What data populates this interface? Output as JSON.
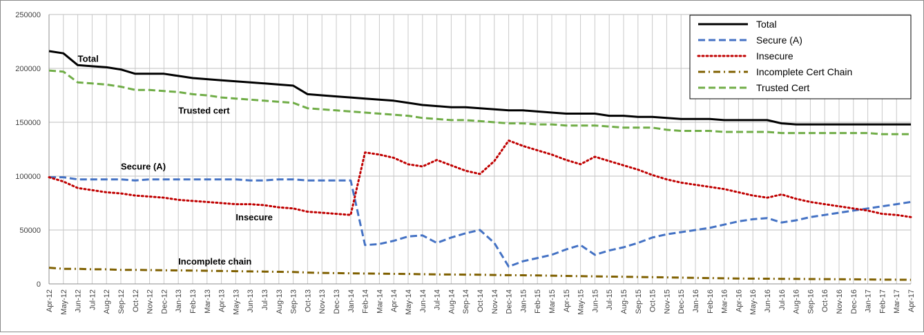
{
  "chart_data": {
    "type": "line",
    "title": "",
    "xlabel": "",
    "ylabel": "",
    "ylim": [
      0,
      250000
    ],
    "yticks": [
      0,
      50000,
      100000,
      150000,
      200000,
      250000
    ],
    "yticklabels": [
      "0",
      "50000",
      "100000",
      "150000",
      "200000",
      "250000"
    ],
    "grid": true,
    "legend_position": "top-right",
    "categories": [
      "Apr-12",
      "May-12",
      "Jun-12",
      "Jul-12",
      "Aug-12",
      "Sep-12",
      "Oct-12",
      "Nov-12",
      "Dec-12",
      "Jan-13",
      "Feb-13",
      "Mar-13",
      "Apr-13",
      "May-13",
      "Jun-13",
      "Jul-13",
      "Aug-13",
      "Sep-13",
      "Oct-13",
      "Nov-13",
      "Dec-13",
      "Jan-14",
      "Feb-14",
      "Mar-14",
      "Apr-14",
      "May-14",
      "Jun-14",
      "Jul-14",
      "Aug-14",
      "Sep-14",
      "Oct-14",
      "Nov-14",
      "Dec-14",
      "Jan-15",
      "Feb-15",
      "Mar-15",
      "Apr-15",
      "May-15",
      "Jun-15",
      "Jul-15",
      "Aug-15",
      "Sep-15",
      "Oct-15",
      "Nov-15",
      "Dec-15",
      "Jan-16",
      "Feb-16",
      "Mar-16",
      "Apr-16",
      "May-16",
      "Jun-16",
      "Jul-16",
      "Aug-16",
      "Sep-16",
      "Oct-16",
      "Nov-16",
      "Dec-16",
      "Jan-17",
      "Feb-17",
      "Mar-17",
      "Apr-17"
    ],
    "series": [
      {
        "name": "Total",
        "color": "#000000",
        "style": "solid",
        "values": [
          216000,
          214000,
          203000,
          202000,
          201000,
          199000,
          195000,
          195000,
          195000,
          193000,
          191000,
          190000,
          189000,
          188000,
          187000,
          186000,
          185000,
          184000,
          176000,
          175000,
          174000,
          173000,
          172000,
          171000,
          170000,
          168000,
          166000,
          165000,
          164000,
          164000,
          163000,
          162000,
          161000,
          161000,
          160000,
          159000,
          158000,
          158000,
          158000,
          156000,
          156000,
          155000,
          155000,
          154000,
          153000,
          153000,
          153000,
          152000,
          152000,
          152000,
          152000,
          149000,
          148000,
          148000,
          148000,
          148000,
          148000,
          148000,
          148000,
          148000,
          148000
        ]
      },
      {
        "name": "Secure (A)",
        "color": "#4472c4",
        "style": "dashed",
        "values": [
          99000,
          99000,
          97000,
          97000,
          97000,
          97000,
          96000,
          97000,
          97000,
          97000,
          97000,
          97000,
          97000,
          97000,
          96000,
          96000,
          97000,
          97000,
          96000,
          96000,
          96000,
          96000,
          36000,
          37000,
          40000,
          44000,
          45000,
          38000,
          43000,
          47000,
          50000,
          38000,
          16000,
          21000,
          24000,
          27000,
          32000,
          36000,
          27000,
          31000,
          34000,
          38000,
          43000,
          46000,
          48000,
          50000,
          52000,
          55000,
          58000,
          60000,
          61000,
          57000,
          59000,
          62000,
          64000,
          66000,
          68000,
          70000,
          72000,
          74000,
          76000
        ]
      },
      {
        "name": "Insecure",
        "color": "#c00000",
        "style": "dotted",
        "values": [
          99000,
          95000,
          89000,
          87000,
          85000,
          84000,
          82000,
          81000,
          80000,
          78000,
          77000,
          76000,
          75000,
          74000,
          74000,
          73000,
          71000,
          70000,
          67000,
          66000,
          65000,
          64000,
          122000,
          120000,
          117000,
          111000,
          109000,
          115000,
          110000,
          105000,
          102000,
          114000,
          133000,
          128000,
          124000,
          120000,
          115000,
          111000,
          118000,
          114000,
          110000,
          106000,
          101000,
          97000,
          94000,
          92000,
          90000,
          88000,
          85000,
          82000,
          80000,
          83000,
          79000,
          76000,
          74000,
          72000,
          70000,
          68000,
          65000,
          64000,
          62000
        ]
      },
      {
        "name": "Incomplete Cert Chain",
        "color": "#7f6000",
        "style": "dashdot",
        "values": [
          15000,
          14000,
          14000,
          13500,
          13500,
          13000,
          13000,
          12800,
          12600,
          12500,
          12400,
          12200,
          12000,
          11800,
          11600,
          11400,
          11200,
          11000,
          10500,
          10200,
          10000,
          9800,
          9600,
          9500,
          9300,
          9200,
          9000,
          8800,
          8700,
          8600,
          8500,
          8300,
          8100,
          8000,
          7800,
          7600,
          7400,
          7200,
          7000,
          6800,
          6600,
          6400,
          6200,
          6000,
          5800,
          5600,
          5400,
          5200,
          5000,
          4900,
          4800,
          4700,
          4600,
          4500,
          4400,
          4300,
          4200,
          4100,
          4000,
          3900,
          3800
        ]
      },
      {
        "name": "Trusted Cert",
        "color": "#70ad47",
        "style": "dashed",
        "values": [
          198000,
          197000,
          187000,
          186000,
          185000,
          183000,
          180000,
          180000,
          179000,
          178000,
          176000,
          175000,
          173000,
          172000,
          171000,
          170000,
          169000,
          168000,
          163000,
          162000,
          161000,
          160000,
          159000,
          158000,
          157000,
          156000,
          154000,
          153000,
          152000,
          152000,
          151000,
          150000,
          149000,
          149000,
          148000,
          148000,
          147000,
          147000,
          147000,
          146000,
          145000,
          145000,
          145000,
          143000,
          142000,
          142000,
          142000,
          141000,
          141000,
          141000,
          141000,
          140000,
          140000,
          140000,
          140000,
          140000,
          140000,
          140000,
          139000,
          139000,
          139000
        ]
      }
    ],
    "annotations": [
      {
        "text": "Total",
        "x": "Jun-12",
        "y": 206000
      },
      {
        "text": "Trusted cert",
        "x": "Jan-13",
        "y": 158000
      },
      {
        "text": "Secure (A)",
        "x": "Sep-12",
        "y": 106000
      },
      {
        "text": "Insecure",
        "x": "May-13",
        "y": 59000
      },
      {
        "text": "Incomplete chain",
        "x": "Jan-13",
        "y": 18000
      }
    ]
  }
}
